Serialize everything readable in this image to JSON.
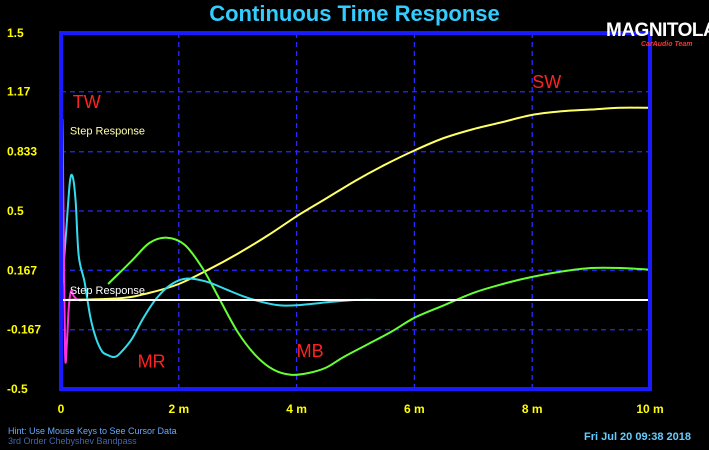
{
  "title": "Continuous Time Response",
  "brand": {
    "name": "MAGNITOLA",
    "sub": "CarAudio Team"
  },
  "hint": "Hint: Use Mouse Keys to See Cursor Data",
  "hint2": "3rd Order Chebyshev Bandpass",
  "datetime": "Fri Jul 20 09:38 2018",
  "colors": {
    "background": "#000000",
    "frame": "#1a1aff",
    "grid": "#2a2aff",
    "tick_label": "#ffff00",
    "annotation": "#ff2222"
  },
  "chart_data": {
    "type": "line",
    "title": "Continuous Time Response",
    "xlim": [
      0,
      10
    ],
    "ylim": [
      -0.5,
      1.5
    ],
    "x_ticks": [
      {
        "value": 0,
        "label": "0"
      },
      {
        "value": 2,
        "label": "2 m"
      },
      {
        "value": 4,
        "label": "4 m"
      },
      {
        "value": 6,
        "label": "6 m"
      },
      {
        "value": 8,
        "label": "8 m"
      },
      {
        "value": 10,
        "label": "10 m"
      }
    ],
    "y_ticks": [
      {
        "value": 1.5,
        "label": "1.5"
      },
      {
        "value": 1.17,
        "label": "1.17"
      },
      {
        "value": 0.833,
        "label": "0.833"
      },
      {
        "value": 0.5,
        "label": "0.5"
      },
      {
        "value": 0.167,
        "label": "0.167"
      },
      {
        "value": -0.167,
        "label": "-0.167"
      },
      {
        "value": -0.5,
        "label": "-0.5"
      }
    ],
    "grid": true,
    "series": [
      {
        "name": "SW",
        "color": "#ffff66",
        "x": [
          0,
          1,
          1.5,
          2,
          2.5,
          3,
          3.5,
          4,
          4.5,
          5,
          5.5,
          6,
          6.5,
          7,
          7.5,
          8,
          8.5,
          9,
          9.5,
          10
        ],
        "y": [
          0,
          0.01,
          0.04,
          0.09,
          0.17,
          0.26,
          0.36,
          0.47,
          0.57,
          0.67,
          0.76,
          0.84,
          0.91,
          0.96,
          1.0,
          1.04,
          1.06,
          1.07,
          1.08,
          1.08
        ]
      },
      {
        "name": "MB",
        "color": "#66ff33",
        "x": [
          0.8,
          1.2,
          1.5,
          1.8,
          2.1,
          2.4,
          2.7,
          3.0,
          3.3,
          3.6,
          3.9,
          4.2,
          4.5,
          4.8,
          5.2,
          5.6,
          6.0,
          6.5,
          7.0,
          7.5,
          8.0,
          8.5,
          9.0,
          9.5,
          10.0
        ],
        "y": [
          0.09,
          0.22,
          0.32,
          0.35,
          0.31,
          0.18,
          0.0,
          -0.18,
          -0.31,
          -0.39,
          -0.42,
          -0.41,
          -0.38,
          -0.32,
          -0.25,
          -0.18,
          -0.1,
          -0.03,
          0.04,
          0.09,
          0.13,
          0.16,
          0.18,
          0.18,
          0.17
        ]
      },
      {
        "name": "MR",
        "color": "#33ddee",
        "x": [
          0.0,
          0.08,
          0.15,
          0.2,
          0.25,
          0.3,
          0.4,
          0.5,
          0.6,
          0.7,
          0.8,
          0.9,
          1.0,
          1.2,
          1.4,
          1.6,
          1.8,
          2.0,
          2.2,
          2.5,
          2.8,
          3.1,
          3.4,
          3.7,
          4.0,
          4.3,
          4.6,
          5.0,
          5.5
        ],
        "y": [
          0.0,
          0.35,
          0.66,
          0.69,
          0.55,
          0.25,
          0.1,
          -0.1,
          -0.22,
          -0.29,
          -0.31,
          -0.32,
          -0.3,
          -0.22,
          -0.1,
          0.0,
          0.07,
          0.11,
          0.12,
          0.1,
          0.06,
          0.02,
          -0.01,
          -0.03,
          -0.03,
          -0.02,
          -0.01,
          0.0,
          0.0
        ]
      },
      {
        "name": "TW",
        "color": "#ff33dd",
        "x": [
          0.0,
          0.02,
          0.04,
          0.07,
          0.1,
          0.13,
          0.17,
          0.22,
          0.3,
          0.4,
          0.6,
          1.0,
          2.0,
          4.0,
          7.0,
          10.0
        ],
        "y": [
          0.0,
          1.0,
          0.55,
          -0.3,
          -0.24,
          -0.05,
          0.05,
          0.02,
          0.0,
          0.0,
          0.0,
          0.0,
          0.0,
          0.0,
          0.0,
          0.0
        ]
      },
      {
        "name": "Step Response",
        "color": "#ffffff",
        "x": [
          0,
          10
        ],
        "y": [
          0,
          0
        ]
      }
    ],
    "annotations": [
      {
        "text": "TW",
        "x": 0.2,
        "y": 1.08,
        "color": "#ff2222",
        "size": 18
      },
      {
        "text": "SW",
        "x": 8.0,
        "y": 1.19,
        "color": "#ff2222",
        "size": 18
      },
      {
        "text": "MR",
        "x": 1.3,
        "y": -0.38,
        "color": "#ff2222",
        "size": 18
      },
      {
        "text": "MB",
        "x": 4.0,
        "y": -0.32,
        "color": "#ff2222",
        "size": 18
      },
      {
        "text": "Step Response",
        "x": 0.15,
        "y": 0.93,
        "color": "#ffffaa",
        "size": 11
      },
      {
        "text": "Step Response",
        "x": 0.15,
        "y": 0.035,
        "color": "#ffffff",
        "size": 11
      }
    ]
  }
}
